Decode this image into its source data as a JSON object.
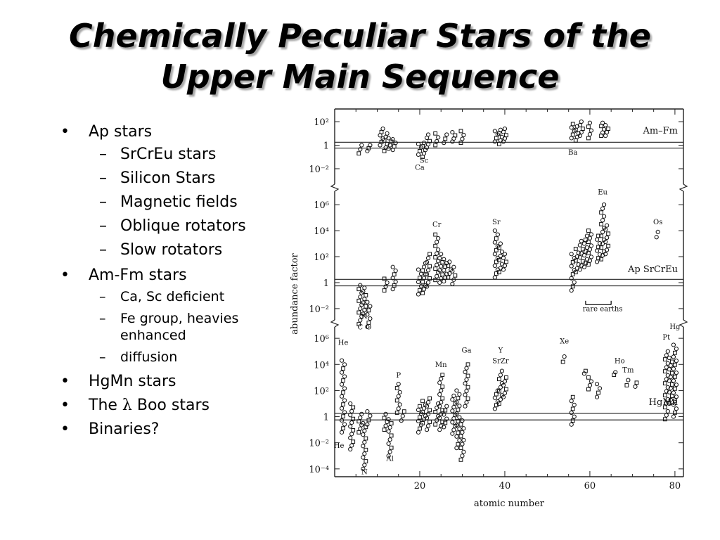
{
  "slide": {
    "title_line1": "Chemically Peculiar Stars of the",
    "title_line2": "Upper Main Sequence",
    "bullets": {
      "ap": "Ap stars",
      "ap_sub": [
        "SrCrEu stars",
        "Silicon Stars",
        "Magnetic fields",
        "Oblique rotators",
        "Slow rotators"
      ],
      "amfm": "Am-Fm stars",
      "amfm_sub": [
        "Ca, Sc deficient",
        "Fe group, heavies enhanced",
        "diffusion"
      ],
      "hgmn": "HgMn stars",
      "lambda_pre": "The ",
      "lambda_sym": "λ",
      "lambda_post": " Boo stars",
      "binaries": "Binaries?"
    }
  },
  "chart_data": {
    "type": "scatter",
    "xlabel": "atomic number",
    "ylabel": "abundance factor",
    "xlim": [
      0,
      82
    ],
    "x_ticks": [
      20,
      40,
      60,
      80
    ],
    "x_tick_labels": [
      "20",
      "40",
      "60",
      "80"
    ],
    "panels": [
      {
        "name": "Am–Fm",
        "ylim_log10": [
          -2.6,
          2.6
        ],
        "y_ticks_log10": [
          2,
          0,
          -2
        ],
        "y_tick_labels": [
          "10²",
          "1",
          "10⁻²"
        ],
        "element_labels": [
          {
            "text": "Sc",
            "x": 21,
            "y": -1.5
          },
          {
            "text": "Ca",
            "x": 20,
            "y": -2.1
          },
          {
            "text": "Ba",
            "x": 56,
            "y": -0.8
          }
        ],
        "clusters": [
          {
            "z": 6,
            "lo": -0.7,
            "hi": 0.0
          },
          {
            "z": 8,
            "lo": -0.5,
            "hi": 0.0
          },
          {
            "z": 11,
            "lo": 0.0,
            "hi": 1.4
          },
          {
            "z": 12,
            "lo": -0.5,
            "hi": 1.0
          },
          {
            "z": 13,
            "lo": -0.3,
            "hi": 0.6
          },
          {
            "z": 14,
            "lo": -0.4,
            "hi": 0.5
          },
          {
            "z": 20,
            "lo": -0.8,
            "hi": 0.1
          },
          {
            "z": 21,
            "lo": -1.0,
            "hi": 0.2
          },
          {
            "z": 22,
            "lo": -0.2,
            "hi": 0.9
          },
          {
            "z": 24,
            "lo": 0.0,
            "hi": 1.0
          },
          {
            "z": 26,
            "lo": 0.2,
            "hi": 0.9
          },
          {
            "z": 28,
            "lo": 0.3,
            "hi": 1.1
          },
          {
            "z": 30,
            "lo": 0.2,
            "hi": 1.2
          },
          {
            "z": 38,
            "lo": 0.3,
            "hi": 1.2
          },
          {
            "z": 39,
            "lo": 0.1,
            "hi": 1.3
          },
          {
            "z": 40,
            "lo": 0.3,
            "hi": 1.4
          },
          {
            "z": 56,
            "lo": 0.6,
            "hi": 1.8
          },
          {
            "z": 57,
            "lo": 0.4,
            "hi": 1.6
          },
          {
            "z": 58,
            "lo": 0.8,
            "hi": 2.0
          },
          {
            "z": 60,
            "lo": 0.6,
            "hi": 1.9
          },
          {
            "z": 63,
            "lo": 0.8,
            "hi": 1.9
          },
          {
            "z": 64,
            "lo": 0.8,
            "hi": 1.7
          }
        ]
      },
      {
        "name": "Ap SrCrEu",
        "ylim_log10": [
          -2.6,
          6.6
        ],
        "y_ticks_log10": [
          6,
          4,
          2,
          0,
          -2
        ],
        "y_tick_labels": [
          "10⁶",
          "10⁴",
          "10²",
          "1",
          "10⁻²"
        ],
        "element_labels": [
          {
            "text": "Cr",
            "x": 24,
            "y": 4.3
          },
          {
            "text": "Sr",
            "x": 38,
            "y": 4.5
          },
          {
            "text": "Eu",
            "x": 63,
            "y": 6.8
          },
          {
            "text": "Os",
            "x": 76,
            "y": 4.5
          },
          {
            "text": "N",
            "x": 7,
            "y": -2.8
          },
          {
            "text": "C",
            "x": 6,
            "y": -3.6
          },
          {
            "text": "O",
            "x": 8,
            "y": -3.6
          },
          {
            "text": "rare earths",
            "x": 63,
            "y": -2.2
          }
        ],
        "clusters": [
          {
            "z": 6,
            "lo": -3.2,
            "hi": -0.2
          },
          {
            "z": 7,
            "lo": -2.4,
            "hi": -0.4
          },
          {
            "z": 8,
            "lo": -3.4,
            "hi": -1.5
          },
          {
            "z": 12,
            "lo": -0.6,
            "hi": 0.3
          },
          {
            "z": 14,
            "lo": -0.5,
            "hi": 1.2
          },
          {
            "z": 20,
            "lo": -0.9,
            "hi": 1.0
          },
          {
            "z": 21,
            "lo": -0.8,
            "hi": 1.5
          },
          {
            "z": 22,
            "lo": -0.3,
            "hi": 2.2
          },
          {
            "z": 24,
            "lo": 0.2,
            "hi": 3.7
          },
          {
            "z": 25,
            "lo": 0.0,
            "hi": 2.2
          },
          {
            "z": 26,
            "lo": 0.1,
            "hi": 1.8
          },
          {
            "z": 27,
            "lo": 0.4,
            "hi": 1.6
          },
          {
            "z": 28,
            "lo": -0.1,
            "hi": 1.2
          },
          {
            "z": 38,
            "lo": 0.4,
            "hi": 4.0
          },
          {
            "z": 39,
            "lo": 0.8,
            "hi": 3.0
          },
          {
            "z": 40,
            "lo": 1.0,
            "hi": 2.2
          },
          {
            "z": 56,
            "lo": -0.6,
            "hi": 2.2
          },
          {
            "z": 57,
            "lo": 0.8,
            "hi": 2.6
          },
          {
            "z": 58,
            "lo": 1.0,
            "hi": 3.2
          },
          {
            "z": 59,
            "lo": 1.2,
            "hi": 3.6
          },
          {
            "z": 60,
            "lo": 1.4,
            "hi": 4.0
          },
          {
            "z": 62,
            "lo": 1.6,
            "hi": 3.6
          },
          {
            "z": 63,
            "lo": 1.8,
            "hi": 6.0
          },
          {
            "z": 64,
            "lo": 2.2,
            "hi": 4.4
          },
          {
            "z": 76,
            "lo": 3.5,
            "hi": 3.9
          }
        ]
      },
      {
        "name": "HgMn",
        "ylim_log10": [
          -4.6,
          6.6
        ],
        "y_ticks_log10": [
          6,
          4,
          2,
          0,
          -2,
          -4
        ],
        "y_tick_labels": [
          "10⁶",
          "10⁴",
          "10²",
          "1",
          "10⁻²",
          "10⁻⁴"
        ],
        "element_labels": [
          {
            "text": "He",
            "x": 2,
            "y": 5.5
          },
          {
            "text": "He",
            "x": 1,
            "y": -2.4
          },
          {
            "text": "N",
            "x": 7,
            "y": -4.4
          },
          {
            "text": "P",
            "x": 15,
            "y": 3.0
          },
          {
            "text": "Al",
            "x": 13,
            "y": -3.4
          },
          {
            "text": "Mn",
            "x": 25,
            "y": 3.8
          },
          {
            "text": "Ga",
            "x": 31,
            "y": 4.9
          },
          {
            "text": "Y",
            "x": 39,
            "y": 4.9
          },
          {
            "text": "SrZr",
            "x": 39,
            "y": 4.1
          },
          {
            "text": "Xe",
            "x": 54,
            "y": 5.6
          },
          {
            "text": "Ho",
            "x": 67,
            "y": 4.1
          },
          {
            "text": "Tm",
            "x": 69,
            "y": 3.4
          },
          {
            "text": "Pt",
            "x": 78,
            "y": 5.9
          },
          {
            "text": "Hg",
            "x": 80,
            "y": 6.7
          }
        ],
        "clusters": [
          {
            "z": 2,
            "lo": -1.2,
            "hi": 4.3
          },
          {
            "z": 4,
            "lo": -2.5,
            "hi": 1.0
          },
          {
            "z": 6,
            "lo": -1.2,
            "hi": 0.2
          },
          {
            "z": 7,
            "lo": -4.0,
            "hi": -0.5
          },
          {
            "z": 8,
            "lo": -0.6,
            "hi": 0.4
          },
          {
            "z": 12,
            "lo": -1.0,
            "hi": 0.2
          },
          {
            "z": 13,
            "lo": -3.0,
            "hi": -0.2
          },
          {
            "z": 15,
            "lo": 0.3,
            "hi": 2.5
          },
          {
            "z": 16,
            "lo": -0.3,
            "hi": 0.4
          },
          {
            "z": 20,
            "lo": -1.2,
            "hi": 0.8
          },
          {
            "z": 21,
            "lo": -0.5,
            "hi": 1.2
          },
          {
            "z": 22,
            "lo": -1.0,
            "hi": 1.4
          },
          {
            "z": 24,
            "lo": -0.6,
            "hi": 1.0
          },
          {
            "z": 25,
            "lo": -1.0,
            "hi": 3.2
          },
          {
            "z": 26,
            "lo": -0.8,
            "hi": 0.8
          },
          {
            "z": 28,
            "lo": -1.3,
            "hi": 1.6
          },
          {
            "z": 29,
            "lo": -2.4,
            "hi": 2.0
          },
          {
            "z": 30,
            "lo": -3.3,
            "hi": -0.3
          },
          {
            "z": 31,
            "lo": 0.8,
            "hi": 4.0
          },
          {
            "z": 38,
            "lo": 0.6,
            "hi": 2.0
          },
          {
            "z": 39,
            "lo": 1.0,
            "hi": 3.5
          },
          {
            "z": 40,
            "lo": 1.5,
            "hi": 3.0
          },
          {
            "z": 54,
            "lo": 4.2,
            "hi": 4.6
          },
          {
            "z": 56,
            "lo": -0.6,
            "hi": 1.5
          },
          {
            "z": 59,
            "lo": 3.3,
            "hi": 3.5
          },
          {
            "z": 60,
            "lo": 2.1,
            "hi": 3.0
          },
          {
            "z": 62,
            "lo": 1.5,
            "hi": 2.5
          },
          {
            "z": 66,
            "lo": 3.2,
            "hi": 3.4
          },
          {
            "z": 69,
            "lo": 2.4,
            "hi": 2.8
          },
          {
            "z": 71,
            "lo": 2.3,
            "hi": 2.6
          },
          {
            "z": 78,
            "lo": -0.2,
            "hi": 5.0
          },
          {
            "z": 79,
            "lo": 1.0,
            "hi": 4.5
          },
          {
            "z": 80,
            "lo": 0.0,
            "hi": 5.5
          }
        ]
      }
    ]
  }
}
